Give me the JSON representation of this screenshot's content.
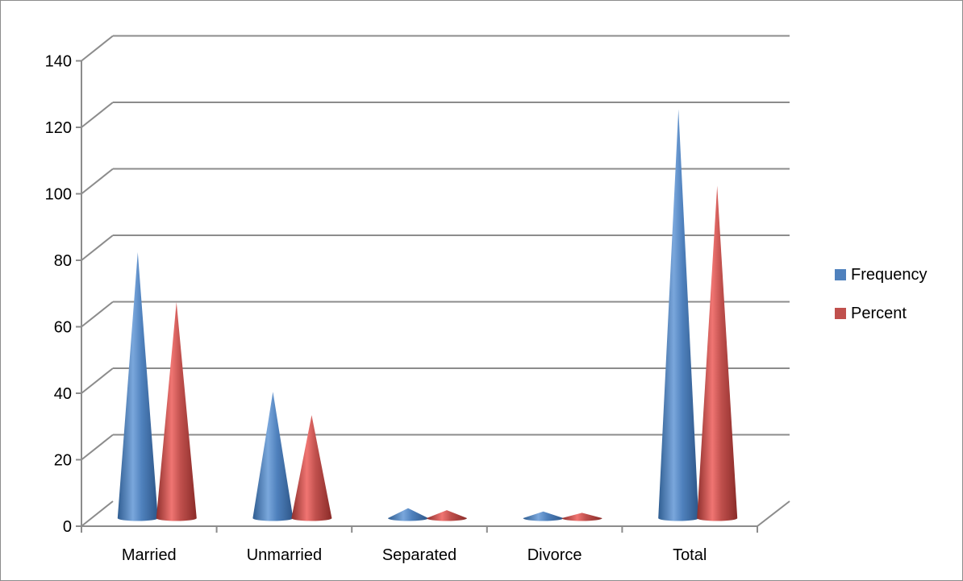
{
  "chart_data": {
    "type": "bar",
    "style": "3d-cone",
    "categories": [
      "Married",
      "Unmarried",
      "Separated",
      "Divorce",
      "Total"
    ],
    "series": [
      {
        "name": "Frequency",
        "values": [
          80,
          38,
          3,
          2,
          123
        ],
        "color": "#4f81bd"
      },
      {
        "name": "Percent",
        "values": [
          65,
          31,
          2.4,
          1.6,
          100
        ],
        "color": "#c0504d"
      }
    ],
    "ylim": [
      0,
      140
    ],
    "yticks": [
      "0",
      "20",
      "40",
      "60",
      "80",
      "100",
      "120",
      "140"
    ],
    "grid": true,
    "legend": "right",
    "title": "",
    "xlabel": "",
    "ylabel": ""
  }
}
